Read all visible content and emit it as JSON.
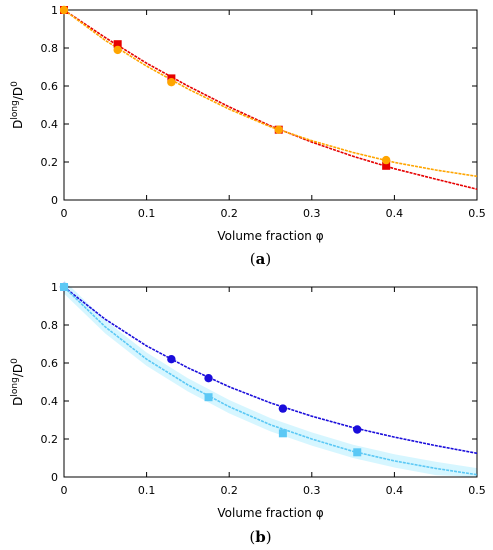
{
  "chart_data": [
    {
      "type": "scatter",
      "panel": "(a)",
      "panel_letter": "a",
      "xlabel": "Volume fraction φ",
      "ylabel_base": "D",
      "ylabel_sup1": "long",
      "ylabel_mid": "/D",
      "ylabel_sup2": "0",
      "xlim": [
        0,
        0.5
      ],
      "ylim": [
        0,
        1
      ],
      "xticks": [
        "0",
        "0.1",
        "0.2",
        "0.3",
        "0.4",
        "0.5"
      ],
      "yticks": [
        "0",
        "0.2",
        "0.4",
        "0.6",
        "0.8",
        "1"
      ],
      "grid": false,
      "series": [
        {
          "color": "#e60000",
          "marker": "square",
          "x": [
            0,
            0.065,
            0.13,
            0.26,
            0.39
          ],
          "y": [
            1.0,
            0.82,
            0.64,
            0.37,
            0.18
          ],
          "fit": {
            "x": [
              0,
              0.05,
              0.1,
              0.15,
              0.2,
              0.25,
              0.3,
              0.35,
              0.4,
              0.45,
              0.5
            ],
            "y": [
              1.0,
              0.855,
              0.72,
              0.6,
              0.49,
              0.39,
              0.305,
              0.23,
              0.165,
              0.11,
              0.057
            ]
          }
        },
        {
          "color": "#ffa500",
          "marker": "circle",
          "x": [
            0,
            0.065,
            0.13,
            0.26,
            0.39
          ],
          "y": [
            1.0,
            0.79,
            0.62,
            0.37,
            0.21
          ],
          "fit": {
            "x": [
              0,
              0.05,
              0.1,
              0.15,
              0.2,
              0.25,
              0.3,
              0.35,
              0.4,
              0.45,
              0.5
            ],
            "y": [
              1.0,
              0.84,
              0.705,
              0.585,
              0.478,
              0.385,
              0.312,
              0.25,
              0.198,
              0.158,
              0.125
            ]
          }
        }
      ]
    },
    {
      "type": "scatter",
      "panel": "(b)",
      "panel_letter": "b",
      "xlabel": "Volume fraction φ",
      "ylabel_base": "D",
      "ylabel_sup1": "long",
      "ylabel_mid": "/D",
      "ylabel_sup2": "0",
      "xlim": [
        0,
        0.5
      ],
      "ylim": [
        0,
        1
      ],
      "xticks": [
        "0",
        "0.1",
        "0.2",
        "0.3",
        "0.4",
        "0.5"
      ],
      "yticks": [
        "0",
        "0.2",
        "0.4",
        "0.6",
        "0.8",
        "1"
      ],
      "grid": false,
      "series": [
        {
          "color": "#1a0ddb",
          "marker": "circle",
          "x": [
            0,
            0.13,
            0.175,
            0.265,
            0.355
          ],
          "y": [
            1.0,
            0.62,
            0.52,
            0.36,
            0.25
          ],
          "fit": {
            "x": [
              0,
              0.05,
              0.1,
              0.15,
              0.2,
              0.25,
              0.3,
              0.35,
              0.4,
              0.45,
              0.5
            ],
            "y": [
              1.0,
              0.83,
              0.69,
              0.575,
              0.475,
              0.39,
              0.32,
              0.26,
              0.21,
              0.165,
              0.125
            ]
          }
        },
        {
          "color": "#5bc8f5",
          "marker": "square",
          "x": [
            0,
            0.175,
            0.265,
            0.355
          ],
          "y": [
            1.0,
            0.42,
            0.23,
            0.13
          ],
          "fit": {
            "x": [
              0,
              0.05,
              0.1,
              0.15,
              0.2,
              0.25,
              0.3,
              0.35,
              0.4,
              0.45,
              0.5
            ],
            "y": [
              1.0,
              0.79,
              0.62,
              0.485,
              0.37,
              0.275,
              0.2,
              0.135,
              0.085,
              0.045,
              0.012
            ]
          }
        }
      ],
      "error_band_color": "#ccf4ff"
    }
  ]
}
